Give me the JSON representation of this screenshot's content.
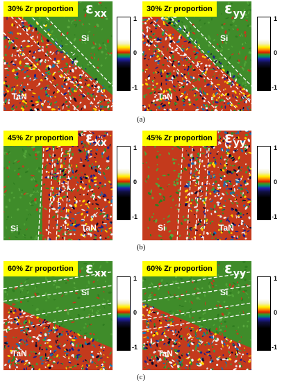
{
  "rows": [
    {
      "caption": "(a)",
      "panels": [
        {
          "title": "30% Zr proportion",
          "symbol": "ε",
          "subscript": "xx",
          "labels": [
            "Si",
            "TaN"
          ],
          "colorbar": {
            "max": "1",
            "mid": "0",
            "min": "-1"
          }
        },
        {
          "title": "30% Zr proportion",
          "symbol": "ε",
          "subscript": "yy",
          "labels": [
            "Si",
            "TaN"
          ],
          "colorbar": {
            "max": "1",
            "mid": "0",
            "min": "-1"
          }
        }
      ]
    },
    {
      "caption": "(b)",
      "panels": [
        {
          "title": "45% Zr proportion",
          "symbol": "ε",
          "subscript": "xx",
          "labels": [
            "Si",
            "TaN"
          ],
          "colorbar": {
            "max": "1",
            "mid": "0",
            "min": "-1"
          }
        },
        {
          "title": "45% Zr proportion",
          "symbol": "ε",
          "subscript": "yy",
          "labels": [
            "Si",
            "TaN"
          ],
          "colorbar": {
            "max": "1",
            "mid": "0",
            "min": "-1"
          }
        }
      ]
    },
    {
      "caption": "(c)",
      "panels": [
        {
          "title": "60% Zr proportion",
          "symbol": "ε",
          "subscript": "xx",
          "labels": [
            "Si",
            "TaN"
          ],
          "colorbar": {
            "max": "1",
            "mid": "0",
            "min": "-1"
          }
        },
        {
          "title": "60% Zr proportion",
          "symbol": "ε",
          "subscript": "yy",
          "labels": [
            "Si",
            "TaN"
          ],
          "colorbar": {
            "max": "1",
            "mid": "0",
            "min": "-1"
          }
        }
      ]
    }
  ],
  "colors": {
    "si_region": "#3f8c2a",
    "tan_base": "#c43a1c",
    "title_bg": "#ffff00",
    "dashed_line": "#ffffff"
  }
}
